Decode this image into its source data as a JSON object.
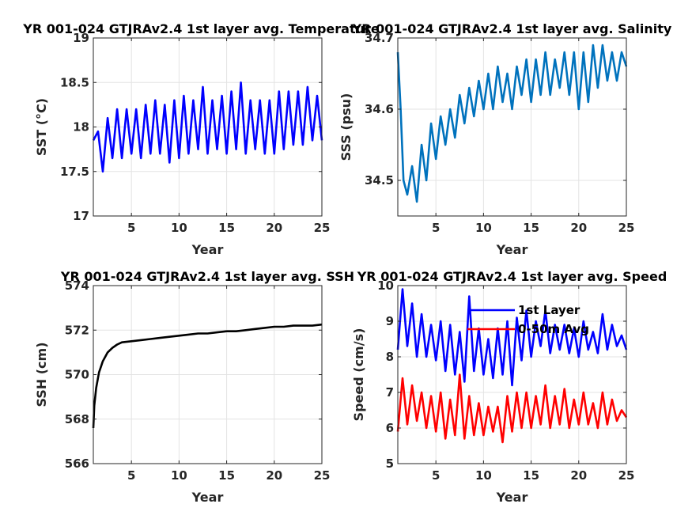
{
  "chart_data": [
    {
      "type": "line",
      "title": "YR 001-024 GTJRAv2.4 1st layer avg. Temperature",
      "xlabel": "Year",
      "ylabel": "SST (°C)",
      "xlim": [
        1,
        25
      ],
      "ylim": [
        17,
        19
      ],
      "xticks": [
        5,
        10,
        15,
        20,
        25
      ],
      "yticks": [
        17,
        17.5,
        18,
        18.5,
        19
      ],
      "grid": true,
      "series": [
        {
          "color": "#0000ff",
          "x": [
            1,
            1.5,
            2,
            2.5,
            3,
            3.5,
            4,
            4.5,
            5,
            5.5,
            6,
            6.5,
            7,
            7.5,
            8,
            8.5,
            9,
            9.5,
            10,
            10.5,
            11,
            11.5,
            12,
            12.5,
            13,
            13.5,
            14,
            14.5,
            15,
            15.5,
            16,
            16.5,
            17,
            17.5,
            18,
            18.5,
            19,
            19.5,
            20,
            20.5,
            21,
            21.5,
            22,
            22.5,
            23,
            23.5,
            24,
            24.5,
            25
          ],
          "y": [
            17.85,
            17.95,
            17.5,
            18.1,
            17.65,
            18.2,
            17.65,
            18.2,
            17.7,
            18.2,
            17.65,
            18.25,
            17.7,
            18.3,
            17.7,
            18.25,
            17.6,
            18.3,
            17.65,
            18.35,
            17.7,
            18.3,
            17.75,
            18.45,
            17.7,
            18.3,
            17.75,
            18.35,
            17.7,
            18.4,
            17.75,
            18.5,
            17.7,
            18.3,
            17.75,
            18.3,
            17.7,
            18.3,
            17.7,
            18.4,
            17.75,
            18.4,
            17.8,
            18.4,
            17.8,
            18.45,
            17.85,
            18.35,
            17.85
          ]
        }
      ]
    },
    {
      "type": "line",
      "title": "YR 001-024 GTJRAv2.4 1st layer avg. Salinity",
      "xlabel": "Year",
      "ylabel": "SSS (psu)",
      "xlim": [
        1,
        25
      ],
      "ylim": [
        34.45,
        34.7
      ],
      "xticks": [
        5,
        10,
        15,
        20,
        25
      ],
      "yticks": [
        34.5,
        34.6,
        34.7
      ],
      "grid": true,
      "series": [
        {
          "color": "#0072bd",
          "x": [
            1,
            1.3,
            1.6,
            2,
            2.5,
            3,
            3.5,
            4,
            4.5,
            5,
            5.5,
            6,
            6.5,
            7,
            7.5,
            8,
            8.5,
            9,
            9.5,
            10,
            10.5,
            11,
            11.5,
            12,
            12.5,
            13,
            13.5,
            14,
            14.5,
            15,
            15.5,
            16,
            16.5,
            17,
            17.5,
            18,
            18.5,
            19,
            19.5,
            20,
            20.5,
            21,
            21.5,
            22,
            22.5,
            23,
            23.5,
            24,
            24.5,
            25
          ],
          "y": [
            34.68,
            34.6,
            34.5,
            34.48,
            34.52,
            34.47,
            34.55,
            34.5,
            34.58,
            34.53,
            34.59,
            34.55,
            34.6,
            34.56,
            34.62,
            34.58,
            34.63,
            34.59,
            34.64,
            34.6,
            34.65,
            34.6,
            34.66,
            34.61,
            34.65,
            34.6,
            34.66,
            34.62,
            34.67,
            34.61,
            34.67,
            34.62,
            34.68,
            34.62,
            34.67,
            34.63,
            34.68,
            34.62,
            34.68,
            34.6,
            34.68,
            34.61,
            34.69,
            34.63,
            34.69,
            34.64,
            34.68,
            34.64,
            34.68,
            34.66
          ]
        }
      ]
    },
    {
      "type": "line",
      "title": "YR 001-024 GTJRAv2.4 1st layer avg. SSH",
      "xlabel": "Year",
      "ylabel": "SSH (cm)",
      "xlim": [
        1,
        25
      ],
      "ylim": [
        566,
        574
      ],
      "xticks": [
        5,
        10,
        15,
        20,
        25
      ],
      "yticks": [
        566,
        568,
        570,
        572,
        574
      ],
      "grid": true,
      "series": [
        {
          "color": "#000000",
          "x": [
            1,
            1.1,
            1.3,
            1.6,
            2,
            2.5,
            3,
            3.5,
            4,
            5,
            6,
            7,
            8,
            9,
            10,
            11,
            12,
            13,
            14,
            15,
            16,
            17,
            18,
            19,
            20,
            21,
            22,
            23,
            24,
            25
          ],
          "y": [
            567.6,
            568.6,
            569.4,
            570.1,
            570.6,
            571.0,
            571.2,
            571.35,
            571.45,
            571.5,
            571.55,
            571.6,
            571.65,
            571.7,
            571.75,
            571.8,
            571.85,
            571.85,
            571.9,
            571.95,
            571.95,
            572.0,
            572.05,
            572.1,
            572.15,
            572.15,
            572.2,
            572.2,
            572.2,
            572.25
          ]
        }
      ]
    },
    {
      "type": "line",
      "title": "YR 001-024 GTJRAv2.4 1st layer avg. Speed",
      "xlabel": "Year",
      "ylabel": "Speed (cm/s)",
      "xlim": [
        1,
        25
      ],
      "ylim": [
        5,
        10
      ],
      "xticks": [
        5,
        10,
        15,
        20,
        25
      ],
      "yticks": [
        5,
        6,
        7,
        8,
        9,
        10
      ],
      "grid": true,
      "legend": "top-center",
      "series": [
        {
          "name": "1st Layer",
          "color": "#0000ff",
          "x": [
            1,
            1.5,
            2,
            2.5,
            3,
            3.5,
            4,
            4.5,
            5,
            5.5,
            6,
            6.5,
            7,
            7.5,
            8,
            8.5,
            9,
            9.5,
            10,
            10.5,
            11,
            11.5,
            12,
            12.5,
            13,
            13.5,
            14,
            14.5,
            15,
            15.5,
            16,
            16.5,
            17,
            17.5,
            18,
            18.5,
            19,
            19.5,
            20,
            20.5,
            21,
            21.5,
            22,
            22.5,
            23,
            23.5,
            24,
            24.5,
            25
          ],
          "y": [
            8.2,
            9.9,
            8.3,
            9.5,
            8.0,
            9.2,
            8.0,
            8.9,
            7.9,
            9.0,
            7.6,
            8.9,
            7.5,
            8.7,
            7.3,
            9.7,
            7.6,
            8.8,
            7.5,
            8.5,
            7.4,
            8.8,
            7.5,
            9.0,
            7.2,
            9.1,
            7.9,
            9.3,
            8.0,
            9.0,
            8.3,
            9.3,
            8.1,
            8.9,
            8.2,
            8.9,
            8.1,
            8.8,
            8.0,
            9.0,
            8.2,
            8.7,
            8.1,
            9.2,
            8.2,
            8.9,
            8.3,
            8.6,
            8.2
          ]
        },
        {
          "name": "0-50m Avg",
          "color": "#ff0000",
          "x": [
            1,
            1.5,
            2,
            2.5,
            3,
            3.5,
            4,
            4.5,
            5,
            5.5,
            6,
            6.5,
            7,
            7.5,
            8,
            8.5,
            9,
            9.5,
            10,
            10.5,
            11,
            11.5,
            12,
            12.5,
            13,
            13.5,
            14,
            14.5,
            15,
            15.5,
            16,
            16.5,
            17,
            17.5,
            18,
            18.5,
            19,
            19.5,
            20,
            20.5,
            21,
            21.5,
            22,
            22.5,
            23,
            23.5,
            24,
            24.5,
            25
          ],
          "y": [
            5.9,
            7.4,
            6.1,
            7.2,
            6.2,
            7.0,
            6.0,
            6.9,
            5.9,
            7.0,
            5.7,
            6.8,
            5.8,
            7.5,
            5.7,
            6.9,
            5.8,
            6.7,
            5.8,
            6.6,
            5.9,
            6.6,
            5.6,
            6.9,
            5.9,
            7.0,
            6.0,
            7.0,
            6.0,
            6.9,
            6.1,
            7.2,
            6.0,
            6.9,
            6.1,
            7.1,
            6.0,
            6.8,
            6.1,
            7.0,
            6.1,
            6.7,
            6.0,
            7.0,
            6.1,
            6.8,
            6.2,
            6.5,
            6.3
          ]
        }
      ]
    }
  ]
}
